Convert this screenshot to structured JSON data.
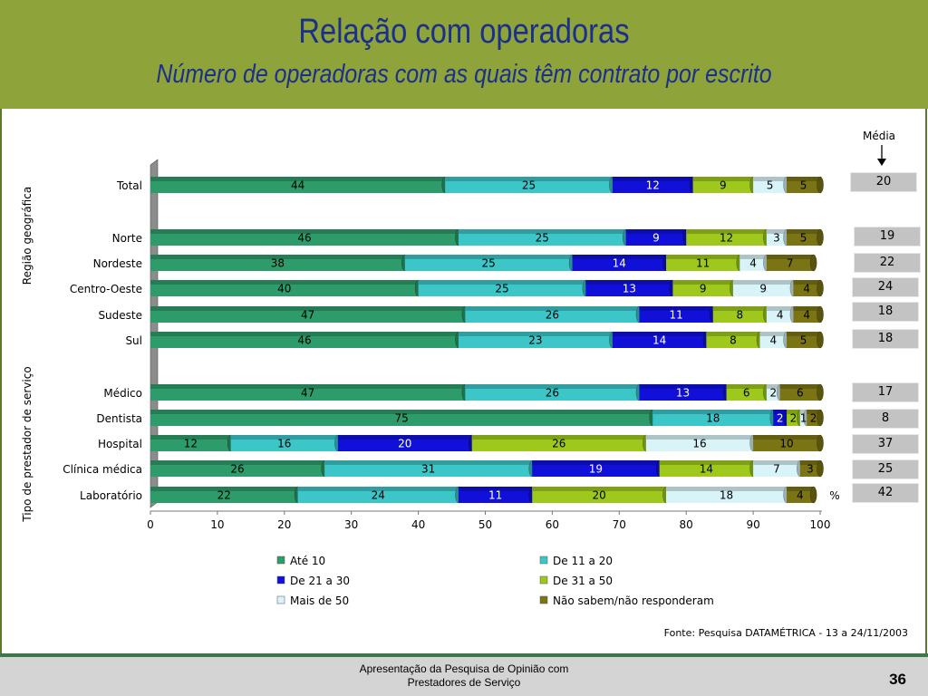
{
  "slide": {
    "title": "Relação com operadoras",
    "subtitle": "Número de operadoras com as quais têm contrato por escrito",
    "source": "Fonte: Pesquisa DATAMÉTRICA - 13 a 24/11/2003",
    "footer_line1": "Apresentação da Pesquisa de Opinião com",
    "footer_line2": "Prestadores de Serviço",
    "page_number": "36",
    "media_label": "Média",
    "group_regiao": "Região geográfica",
    "group_tipo": "Tipo de prestador de serviço"
  },
  "colors": {
    "header": "#8ea339",
    "title": "#1b2f8c",
    "series": [
      "#2e9b6a",
      "#3cc6c8",
      "#1010d8",
      "#9ec81c",
      "#d8f4f8",
      "#7a7414"
    ]
  },
  "medias": [
    "20",
    "19",
    "22",
    "24",
    "18",
    "18",
    "17",
    "8",
    "37",
    "25",
    "42"
  ],
  "chart_data": {
    "type": "bar",
    "orientation": "horizontal",
    "stacked": true,
    "categories": [
      "Total",
      "Norte",
      "Nordeste",
      "Centro-Oeste",
      "Sudeste",
      "Sul",
      "Médico",
      "Dentista",
      "Hospital",
      "Clínica médica",
      "Laboratório"
    ],
    "series": [
      {
        "name": "Até 10",
        "values": [
          44,
          46,
          38,
          40,
          47,
          46,
          47,
          75,
          12,
          26,
          22
        ]
      },
      {
        "name": "De 11 a 20",
        "values": [
          25,
          25,
          25,
          25,
          26,
          23,
          26,
          18,
          16,
          31,
          24
        ]
      },
      {
        "name": "De 21 a 30",
        "values": [
          12,
          9,
          14,
          13,
          11,
          14,
          13,
          2,
          20,
          19,
          11
        ]
      },
      {
        "name": "De 31 a 50",
        "values": [
          9,
          12,
          11,
          9,
          8,
          8,
          6,
          2,
          26,
          14,
          20
        ]
      },
      {
        "name": "Mais de 50",
        "values": [
          5,
          3,
          4,
          9,
          4,
          4,
          2,
          1,
          16,
          7,
          18
        ]
      },
      {
        "name": "Não sabem/não responderam",
        "values": [
          5,
          5,
          7,
          4,
          4,
          5,
          6,
          2,
          10,
          3,
          4
        ]
      }
    ],
    "xlim": [
      0,
      100
    ],
    "xticks": [
      "0",
      "10",
      "20",
      "30",
      "40",
      "50",
      "60",
      "70",
      "80",
      "90",
      "100"
    ],
    "unit_label": "%",
    "legend_position": "bottom"
  }
}
